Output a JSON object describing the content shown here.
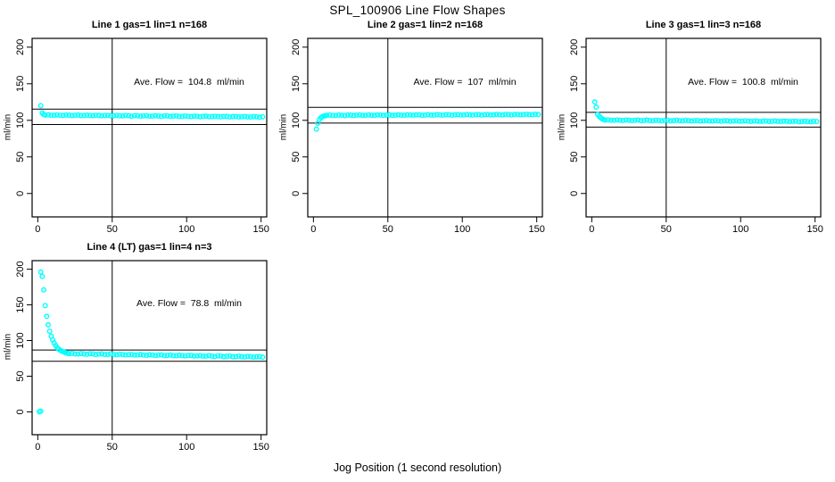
{
  "title": "SPL_100906  Line Flow Shapes",
  "xlabel": "Jog Position (1 second resolution)",
  "chart_data": {
    "type": "scatter",
    "title": "SPL_100906  Line Flow Shapes",
    "xlabel": "Jog Position (1 second resolution)",
    "point_color": "#00FFFF",
    "axis_color": "#000000",
    "grid": false,
    "legend": "none",
    "xlim": [
      -3.8,
      153.8
    ],
    "ylim": [
      -32,
      212
    ],
    "x_ticks": [
      0,
      50,
      100,
      150
    ],
    "y_ticks": [
      0,
      50,
      100,
      150,
      200
    ],
    "vline_x": 50,
    "panels": [
      {
        "title": "Line 1 gas=1 lin=1 n=168",
        "ylabel": "ml/min",
        "annotation": "Ave. Flow =  104.8  ml/min",
        "ave_flow_ml_min": 104.8,
        "n": 168,
        "ref_lines_y": [
          115.3,
          94.3
        ],
        "transient_points": [
          [
            2,
            120
          ],
          [
            3,
            110
          ],
          [
            4,
            108
          ]
        ],
        "band": {
          "x_start": 5,
          "x_end": 152,
          "x_step": 2,
          "y_start": 107.2,
          "y_end": 104.6,
          "jitter": 0.5
        }
      },
      {
        "title": "Line 2 gas=1 lin=2 n=168",
        "ylabel": "ml/min",
        "annotation": "Ave. Flow =  107  ml/min",
        "ave_flow_ml_min": 107,
        "n": 168,
        "ref_lines_y": [
          117.7,
          96.3
        ],
        "transient_points": [
          [
            2,
            88
          ],
          [
            3,
            96
          ],
          [
            4,
            101
          ],
          [
            5,
            103.5
          ],
          [
            6,
            105
          ],
          [
            7,
            105.8
          ],
          [
            8,
            106.3
          ]
        ],
        "band": {
          "x_start": 9,
          "x_end": 152,
          "x_step": 2,
          "y_start": 106.8,
          "y_end": 108,
          "jitter": 0.5
        }
      },
      {
        "title": "Line 3 gas=1 lin=3 n=168",
        "ylabel": "ml/min",
        "annotation": "Ave. Flow =  100.8  ml/min",
        "ave_flow_ml_min": 100.8,
        "n": 168,
        "ref_lines_y": [
          110.9,
          90.7
        ],
        "transient_points": [
          [
            2,
            125
          ],
          [
            3,
            118
          ],
          [
            4,
            108
          ],
          [
            5,
            105.5
          ],
          [
            6,
            103.5
          ],
          [
            7,
            102
          ],
          [
            8,
            101
          ]
        ],
        "band": {
          "x_start": 9,
          "x_end": 152,
          "x_step": 2,
          "y_start": 100.3,
          "y_end": 98.3,
          "jitter": 0.5
        }
      },
      {
        "title": "Line 4 (LT) gas=1 lin=4 n=3",
        "ylabel": "ml/min",
        "annotation": "Ave. Flow =  78.8  ml/min",
        "ave_flow_ml_min": 78.8,
        "n": 3,
        "ref_lines_y": [
          86.7,
          70.9
        ],
        "transient_points": [
          [
            1,
            0
          ],
          [
            2,
            1
          ],
          [
            2,
            196
          ],
          [
            3,
            190
          ],
          [
            4,
            171
          ],
          [
            5,
            149
          ],
          [
            6,
            134
          ],
          [
            7,
            122
          ],
          [
            8,
            113
          ],
          [
            9,
            106
          ],
          [
            10,
            101
          ],
          [
            11,
            96.5
          ],
          [
            12,
            93
          ],
          [
            13,
            90
          ],
          [
            14,
            88
          ],
          [
            15,
            86.5
          ],
          [
            16,
            85.3
          ],
          [
            17,
            84.3
          ],
          [
            18,
            83.5
          ],
          [
            19,
            82.8
          ],
          [
            20,
            82.2
          ]
        ],
        "band": {
          "x_start": 21,
          "x_end": 152,
          "x_step": 2,
          "y_start": 81.6,
          "y_end": 77,
          "jitter": 0.6
        }
      }
    ]
  }
}
